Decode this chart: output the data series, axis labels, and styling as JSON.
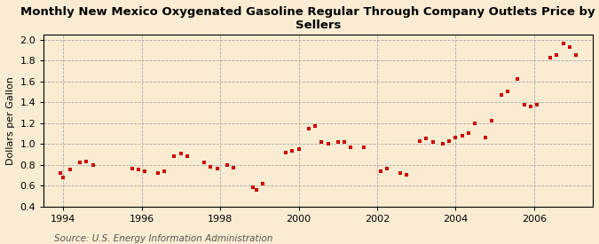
{
  "title": "Monthly New Mexico Oxygenated Gasoline Regular Through Company Outlets Price by All\nSellers",
  "ylabel": "Dollars per Gallon",
  "source": "Source: U.S. Energy Information Administration",
  "background_color": "#faecd2",
  "plot_bg_color": "#faecd2",
  "dot_color": "#cc0000",
  "xlim": [
    1993.5,
    2007.5
  ],
  "ylim": [
    0.4,
    2.05
  ],
  "yticks": [
    0.4,
    0.6,
    0.8,
    1.0,
    1.2,
    1.4,
    1.6,
    1.8,
    2.0
  ],
  "xticks": [
    1994,
    1996,
    1998,
    2000,
    2002,
    2004,
    2006
  ],
  "data_x": [
    1993.92,
    1994.0,
    1994.17,
    1994.42,
    1994.58,
    1994.75,
    1995.75,
    1995.92,
    1996.08,
    1996.42,
    1996.58,
    1996.83,
    1997.0,
    1997.17,
    1997.58,
    1997.75,
    1997.92,
    1998.17,
    1998.33,
    1998.83,
    1998.92,
    1999.08,
    1999.67,
    1999.83,
    2000.0,
    2000.25,
    2000.42,
    2000.58,
    2000.75,
    2001.0,
    2001.17,
    2001.33,
    2001.67,
    2002.08,
    2002.25,
    2002.58,
    2002.75,
    2003.08,
    2003.25,
    2003.42,
    2003.67,
    2003.83,
    2004.0,
    2004.17,
    2004.33,
    2004.5,
    2004.75,
    2004.92,
    2005.17,
    2005.33,
    2005.58,
    2005.75,
    2005.92,
    2006.08,
    2006.42,
    2006.58,
    2006.75,
    2006.92,
    2007.08
  ],
  "data_y": [
    0.72,
    0.68,
    0.75,
    0.82,
    0.83,
    0.8,
    0.76,
    0.75,
    0.74,
    0.72,
    0.74,
    0.88,
    0.91,
    0.88,
    0.82,
    0.78,
    0.76,
    0.8,
    0.77,
    0.58,
    0.56,
    0.62,
    0.92,
    0.93,
    0.95,
    1.15,
    1.17,
    1.02,
    1.0,
    1.02,
    1.02,
    0.97,
    0.97,
    0.74,
    0.76,
    0.72,
    0.7,
    1.03,
    1.05,
    1.02,
    1.0,
    1.03,
    1.06,
    1.08,
    1.1,
    1.2,
    1.06,
    1.22,
    1.47,
    1.5,
    1.62,
    1.38,
    1.36,
    1.38,
    1.83,
    1.85,
    1.96,
    1.93,
    1.85
  ]
}
